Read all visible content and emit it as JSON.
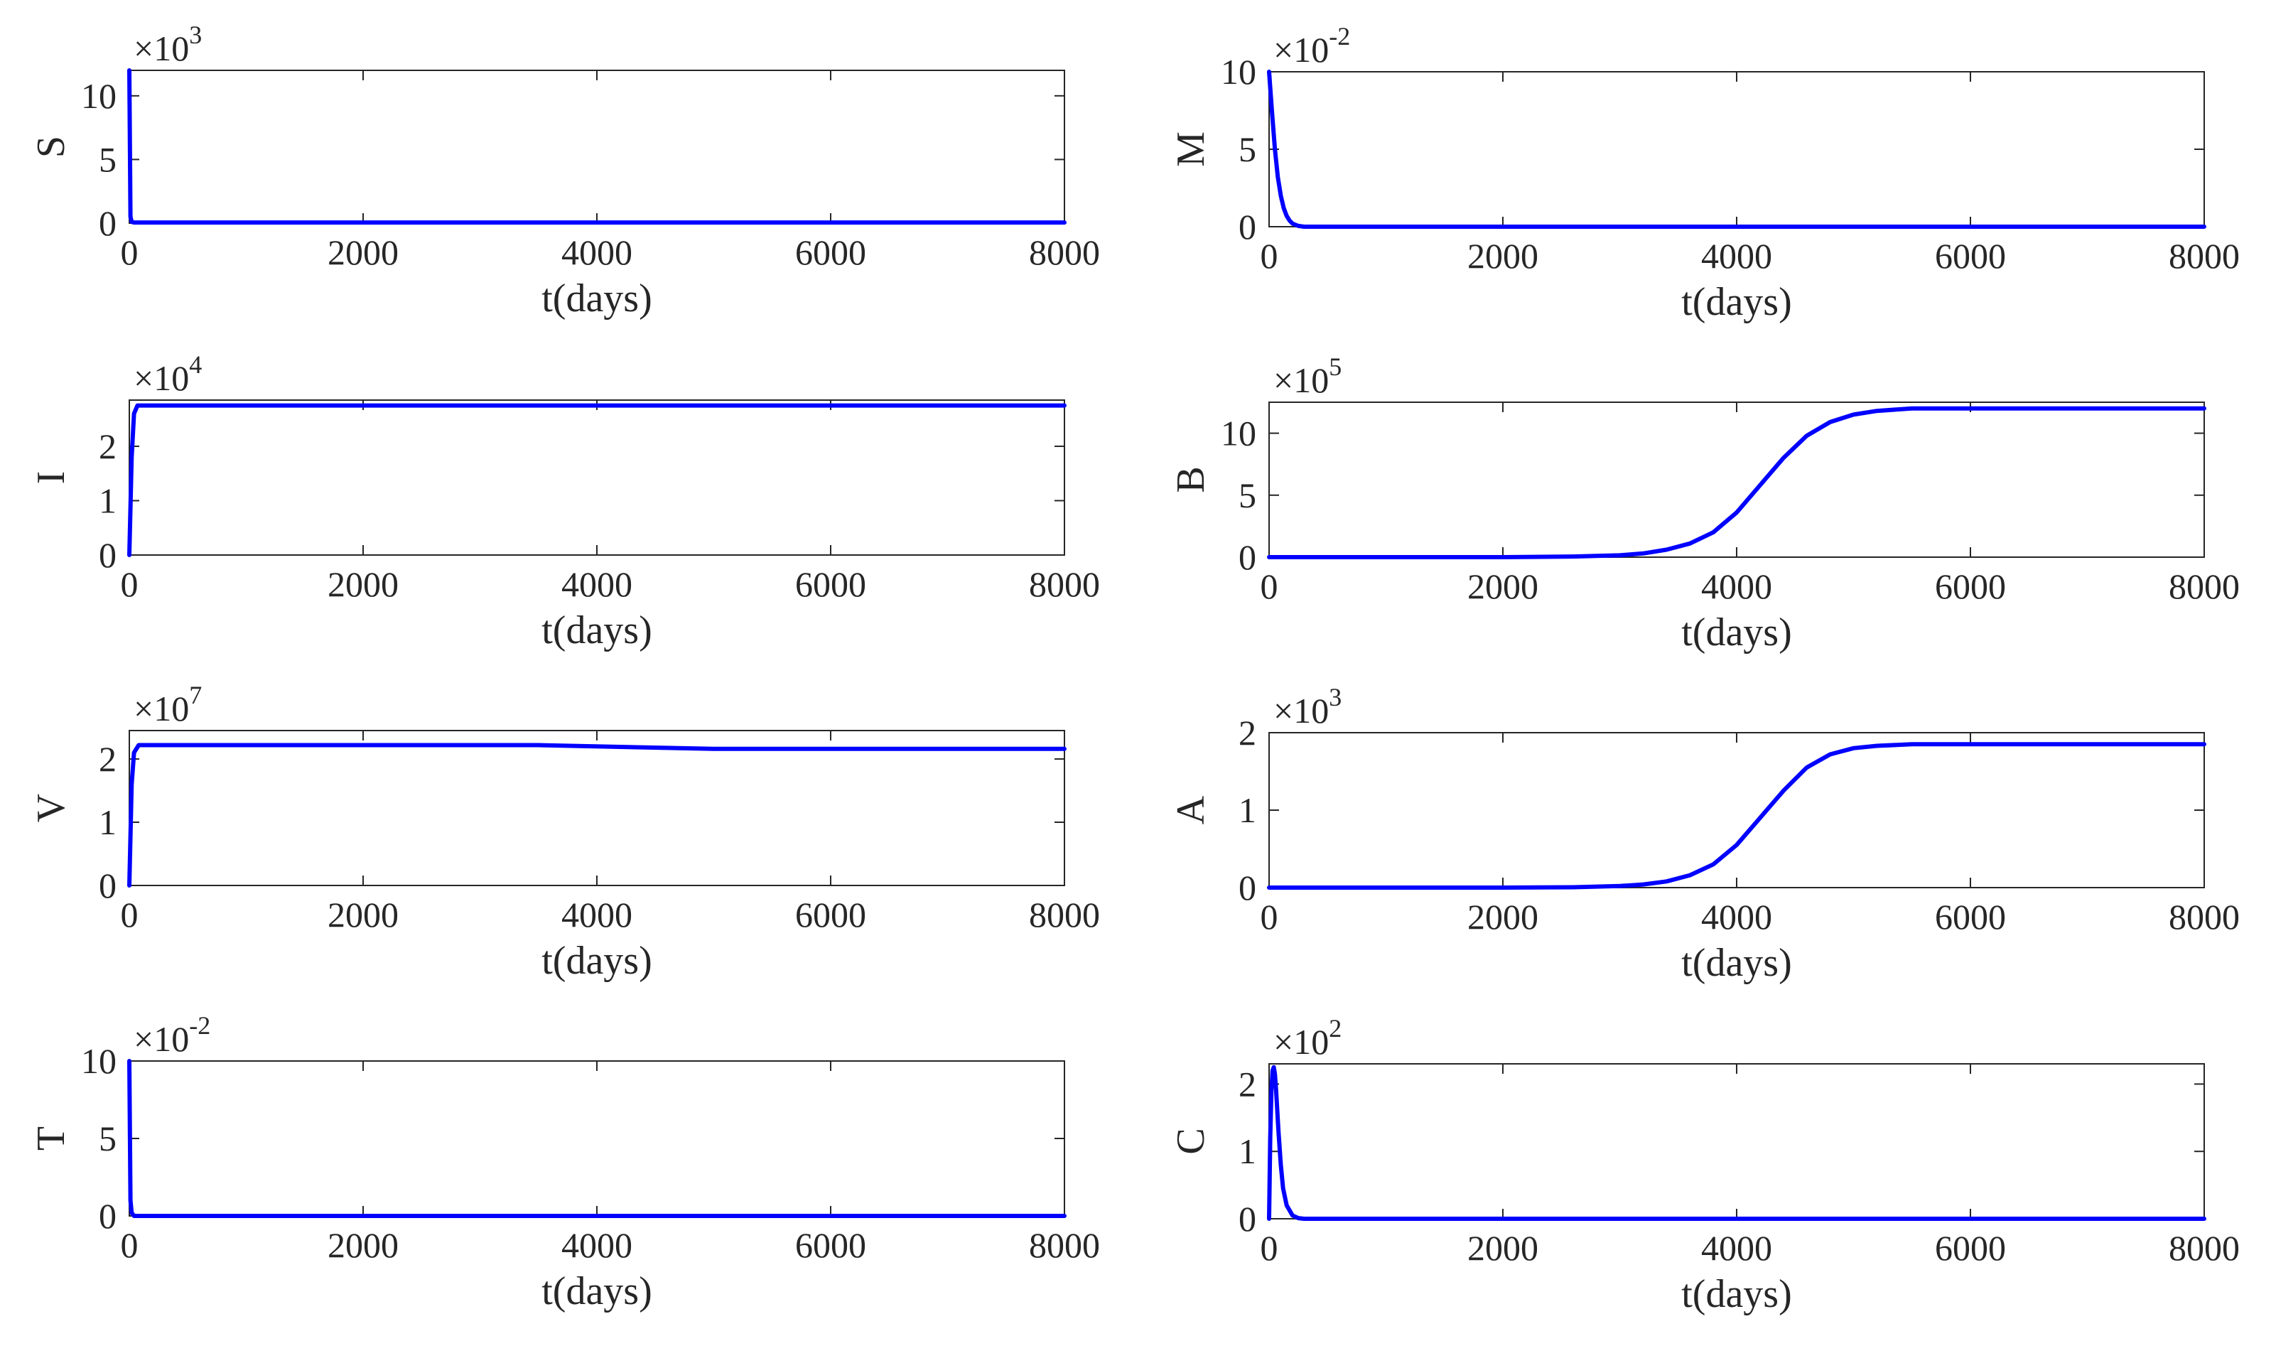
{
  "chart_data": [
    {
      "type": "line",
      "ylabel": "S",
      "xlabel": "t(days)",
      "exponent": {
        "base": "×10",
        "power": "3"
      },
      "xlim": [
        0,
        8000
      ],
      "ylim": [
        0,
        12
      ],
      "xticks": [
        0,
        2000,
        4000,
        6000,
        8000
      ],
      "yticks": [
        0,
        5,
        10
      ],
      "series": [
        {
          "color": "#0000ff",
          "x": [
            0,
            10,
            20,
            40,
            8000
          ],
          "y": [
            12,
            0.5,
            0.1,
            0.05,
            0.05
          ]
        }
      ]
    },
    {
      "type": "line",
      "ylabel": "I",
      "xlabel": "t(days)",
      "exponent": {
        "base": "×10",
        "power": "4"
      },
      "xlim": [
        0,
        8000
      ],
      "ylim": [
        0,
        2.85
      ],
      "xticks": [
        0,
        2000,
        4000,
        6000,
        8000
      ],
      "yticks": [
        0,
        1,
        2
      ],
      "series": [
        {
          "color": "#0000ff",
          "x": [
            0,
            20,
            40,
            70,
            8000
          ],
          "y": [
            0,
            1.8,
            2.6,
            2.75,
            2.75
          ]
        }
      ]
    },
    {
      "type": "line",
      "ylabel": "V",
      "xlabel": "t(days)",
      "exponent": {
        "base": "×10",
        "power": "7"
      },
      "xlim": [
        0,
        8000
      ],
      "ylim": [
        0,
        2.45
      ],
      "xticks": [
        0,
        2000,
        4000,
        6000,
        8000
      ],
      "yticks": [
        0,
        1,
        2
      ],
      "series": [
        {
          "color": "#0000ff",
          "x": [
            0,
            20,
            40,
            80,
            3500,
            5000,
            8000
          ],
          "y": [
            0,
            1.6,
            2.1,
            2.22,
            2.22,
            2.16,
            2.16
          ]
        }
      ]
    },
    {
      "type": "line",
      "ylabel": "T",
      "xlabel": "t(days)",
      "exponent": {
        "base": "×10",
        "power": "-2"
      },
      "xlim": [
        0,
        8000
      ],
      "ylim": [
        0,
        10
      ],
      "xticks": [
        0,
        2000,
        4000,
        6000,
        8000
      ],
      "yticks": [
        0,
        5,
        10
      ],
      "series": [
        {
          "color": "#0000ff",
          "x": [
            0,
            10,
            20,
            40,
            8000
          ],
          "y": [
            10,
            1,
            0.2,
            0,
            0
          ]
        }
      ]
    },
    {
      "type": "line",
      "ylabel": "M",
      "xlabel": "t(days)",
      "exponent": {
        "base": "×10",
        "power": "-2"
      },
      "xlim": [
        0,
        8000
      ],
      "ylim": [
        0,
        10
      ],
      "xticks": [
        0,
        2000,
        4000,
        6000,
        8000
      ],
      "yticks": [
        0,
        5,
        10
      ],
      "series": [
        {
          "color": "#0000ff",
          "x": [
            0,
            25,
            50,
            75,
            100,
            125,
            150,
            175,
            200,
            250,
            300,
            8000
          ],
          "y": [
            10,
            7.4,
            5.0,
            3.2,
            2.0,
            1.2,
            0.7,
            0.4,
            0.2,
            0.05,
            0,
            0
          ]
        }
      ]
    },
    {
      "type": "line",
      "ylabel": "B",
      "xlabel": "t(days)",
      "exponent": {
        "base": "×10",
        "power": "5"
      },
      "xlim": [
        0,
        8000
      ],
      "ylim": [
        0,
        12.5
      ],
      "xticks": [
        0,
        2000,
        4000,
        6000,
        8000
      ],
      "yticks": [
        0,
        5,
        10
      ],
      "series": [
        {
          "color": "#0000ff",
          "x": [
            0,
            2000,
            2600,
            3000,
            3200,
            3400,
            3600,
            3800,
            4000,
            4200,
            4400,
            4600,
            4800,
            5000,
            5200,
            5500,
            6000,
            8000
          ],
          "y": [
            0,
            0,
            0.05,
            0.15,
            0.3,
            0.6,
            1.1,
            2.0,
            3.6,
            5.8,
            8.0,
            9.8,
            10.9,
            11.5,
            11.8,
            12.0,
            12.0,
            12.0
          ]
        }
      ]
    },
    {
      "type": "line",
      "ylabel": "A",
      "xlabel": "t(days)",
      "exponent": {
        "base": "×10",
        "power": "3"
      },
      "xlim": [
        0,
        8000
      ],
      "ylim": [
        0,
        2
      ],
      "xticks": [
        0,
        2000,
        4000,
        6000,
        8000
      ],
      "yticks": [
        0,
        1,
        2
      ],
      "series": [
        {
          "color": "#0000ff",
          "x": [
            0,
            2000,
            2600,
            3000,
            3200,
            3400,
            3600,
            3800,
            4000,
            4200,
            4400,
            4600,
            4800,
            5000,
            5200,
            5500,
            6000,
            8000
          ],
          "y": [
            0,
            0,
            0.005,
            0.02,
            0.04,
            0.08,
            0.16,
            0.3,
            0.55,
            0.9,
            1.25,
            1.55,
            1.72,
            1.8,
            1.83,
            1.85,
            1.85,
            1.85
          ]
        }
      ]
    },
    {
      "type": "line",
      "ylabel": "C",
      "xlabel": "t(days)",
      "exponent": {
        "base": "×10",
        "power": "2"
      },
      "xlim": [
        0,
        8000
      ],
      "ylim": [
        0,
        2.3
      ],
      "xticks": [
        0,
        2000,
        4000,
        6000,
        8000
      ],
      "yticks": [
        0,
        1,
        2
      ],
      "series": [
        {
          "color": "#0000ff",
          "x": [
            0,
            10,
            20,
            30,
            40,
            50,
            60,
            80,
            100,
            120,
            150,
            200,
            250,
            300,
            8000
          ],
          "y": [
            0,
            1.2,
            1.9,
            2.2,
            2.25,
            2.15,
            1.9,
            1.3,
            0.8,
            0.45,
            0.2,
            0.05,
            0.01,
            0,
            0
          ]
        }
      ]
    }
  ]
}
